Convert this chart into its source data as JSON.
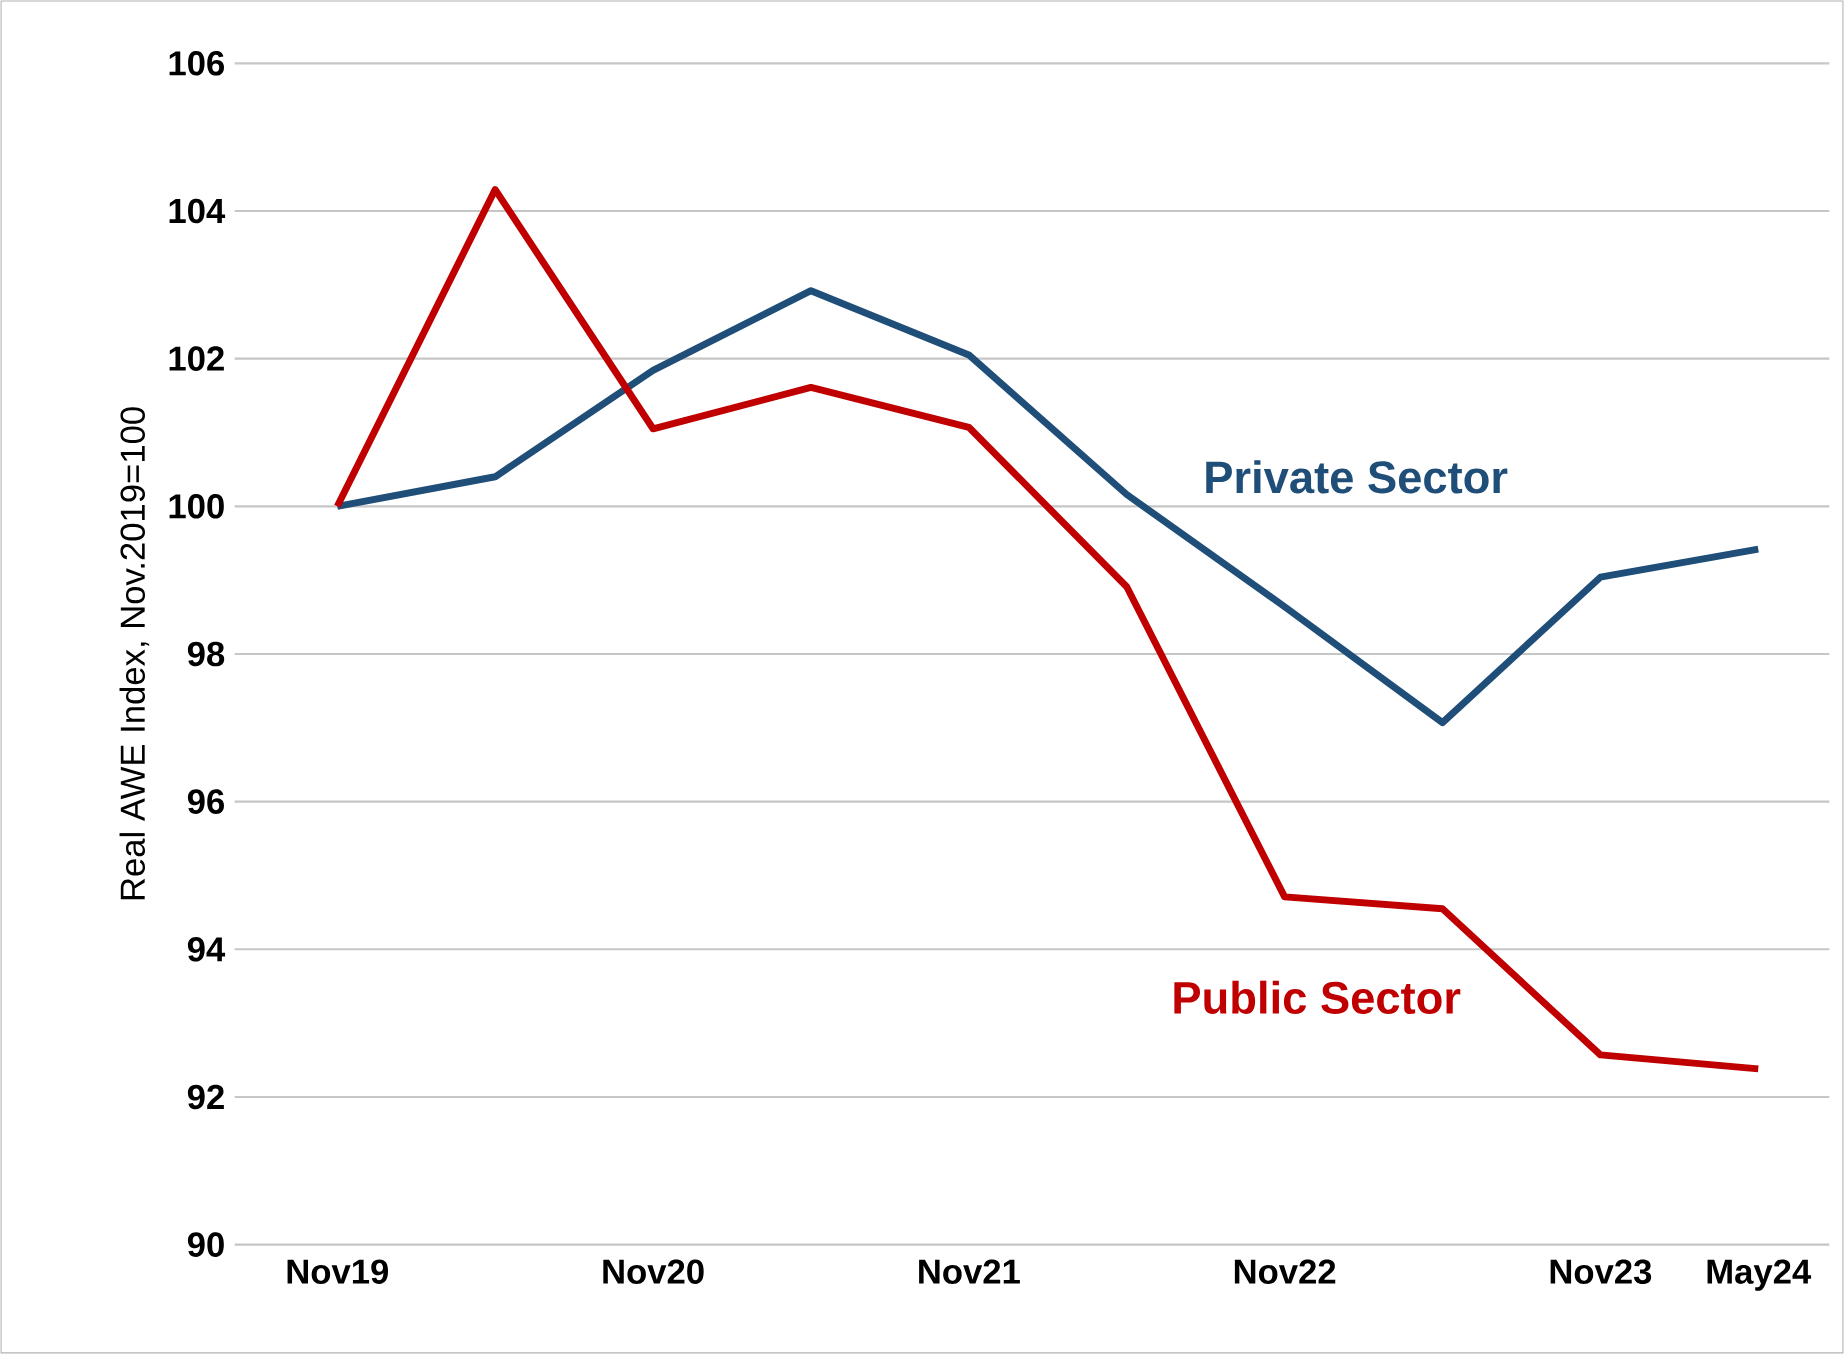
{
  "chart_data": {
    "type": "line",
    "ylabel": "Real AWE Index, Nov.2019=100",
    "categories": [
      "Nov19",
      null,
      "Nov20",
      null,
      "Nov21",
      null,
      "Nov22",
      null,
      "Nov23",
      "May24"
    ],
    "series": [
      {
        "name": "Private Sector",
        "color": "#1f4e79",
        "values": [
          100,
          100.4,
          101.84,
          102.92,
          102.05,
          100.16,
          98.64,
          97.07,
          99.04,
          99.42
        ]
      },
      {
        "name": "Public Sector",
        "color": "#c00000",
        "values": [
          100,
          104.29,
          101.05,
          101.61,
          101.07,
          98.91,
          94.71,
          94.55,
          92.57,
          92.38
        ]
      }
    ],
    "ylim": [
      90,
      106
    ],
    "yticks": [
      90,
      92,
      94,
      96,
      98,
      100,
      102,
      104,
      106
    ],
    "grid": "y",
    "marker": "none",
    "line_style": "solid"
  }
}
